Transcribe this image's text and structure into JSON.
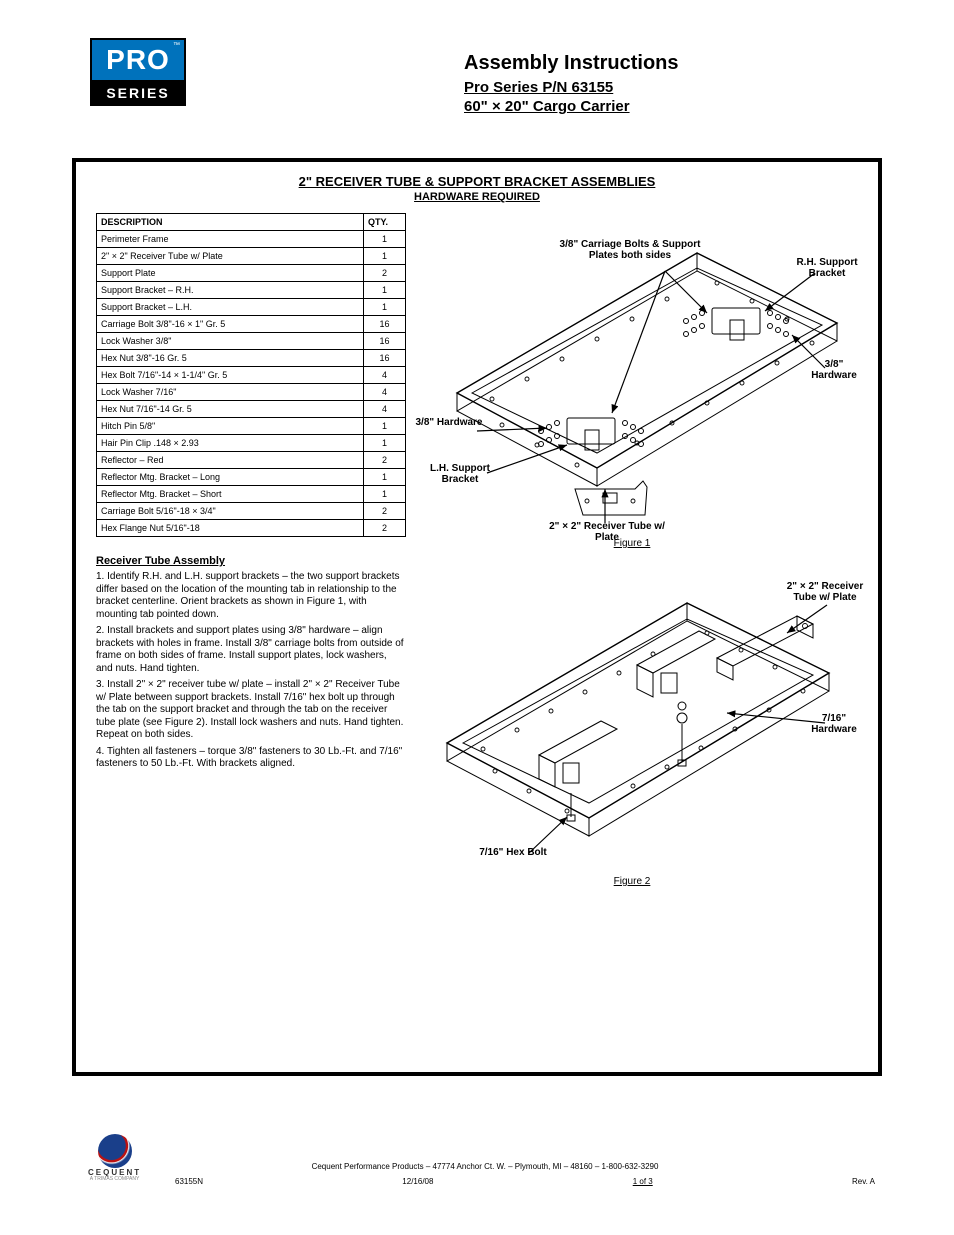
{
  "logo": {
    "top": "PRO",
    "tm": "™",
    "bottom": "SERIES"
  },
  "header": {
    "title": "Assembly Instructions",
    "part_number": "Pro Series P/N 63155",
    "model": "60\" × 20\" Cargo Carrier"
  },
  "section": {
    "title": "2\" RECEIVER TUBE & SUPPORT BRACKET ASSEMBLIES",
    "subtitle": "HARDWARE REQUIRED"
  },
  "parts": {
    "cols": [
      "DESCRIPTION",
      "QTY."
    ],
    "rows": [
      [
        "Perimeter Frame",
        "1"
      ],
      [
        "2\" × 2\" Receiver Tube w/ Plate",
        "1"
      ],
      [
        "Support Plate",
        "2"
      ],
      [
        "Support Bracket – R.H.",
        "1"
      ],
      [
        "Support Bracket – L.H.",
        "1"
      ],
      [
        "Carriage Bolt 3/8\"-16 × 1\" Gr. 5",
        "16"
      ],
      [
        "Lock Washer 3/8\"",
        "16"
      ],
      [
        "Hex Nut 3/8\"-16 Gr. 5",
        "16"
      ],
      [
        "Hex Bolt 7/16\"-14 × 1-1/4\" Gr. 5",
        "4"
      ],
      [
        "Lock Washer 7/16\"",
        "4"
      ],
      [
        "Hex Nut 7/16\"-14 Gr. 5",
        "4"
      ],
      [
        "Hitch Pin 5/8\"",
        "1"
      ],
      [
        "Hair Pin Clip .148 × 2.93",
        "1"
      ],
      [
        "Reflector – Red",
        "2"
      ],
      [
        "Reflector Mtg. Bracket – Long",
        "1"
      ],
      [
        "Reflector Mtg. Bracket – Short",
        "1"
      ],
      [
        "Carriage Bolt 5/16\"-18 × 3/4\"",
        "2"
      ],
      [
        "Hex Flange Nut 5/16\"-18",
        "2"
      ]
    ]
  },
  "fig1": {
    "label": "Figure 1",
    "callouts": {
      "a": "3/8\" Carriage Bolts &\nSupport Plates both sides",
      "b": "R.H. Support\nBracket",
      "c": "L.H. Support\nBracket",
      "d": "3/8\"\nHardware",
      "e": "2\" × 2\" Receiver\nTube w/ Plate"
    }
  },
  "fig2": {
    "label": "Figure 2",
    "callouts": {
      "a": "2\" × 2\" Receiver\nTube w/ Plate",
      "b": "7/16\"\nHardware",
      "c": "7/16\" Hex\nBolt"
    }
  },
  "instructions": {
    "title": "Receiver Tube Assembly",
    "steps": [
      "1. Identify R.H. and L.H. support brackets – the two support brackets differ based on the location of the mounting tab in relationship to the bracket centerline. Orient brackets as shown in Figure 1, with mounting tab pointed down.",
      "2. Install brackets and support plates using 3/8\" hardware – align brackets with holes in frame. Install 3/8\" carriage bolts from outside of frame on both sides of frame. Install support plates, lock washers, and nuts. Hand tighten.",
      "3. Install 2\" × 2\" receiver tube w/ plate – install 2\" × 2\" Receiver Tube w/ Plate between support brackets. Install 7/16\" hex bolt up through the tab on the support bracket and through the tab on the receiver tube plate (see Figure 2). Install lock washers and nuts. Hand tighten. Repeat on both sides.",
      "4. Tighten all fasteners – torque 3/8\" fasteners to 30 Lb.-Ft. and 7/16\" fasteners to 50 Lb.-Ft. With brackets aligned."
    ]
  },
  "footer": {
    "logo": "CEQUENT",
    "sub": "A TRIMAS COMPANY",
    "addr": "Cequent Performance Products – 47774 Anchor Ct. W. – Plymouth, MI – 48160 – 1-800-632-3290",
    "nums": [
      "63155N",
      "12/16/08",
      "1 of 3",
      "Rev. A"
    ]
  },
  "colors": {
    "brand_blue": "#0072bc",
    "black": "#000000",
    "white": "#ffffff"
  }
}
